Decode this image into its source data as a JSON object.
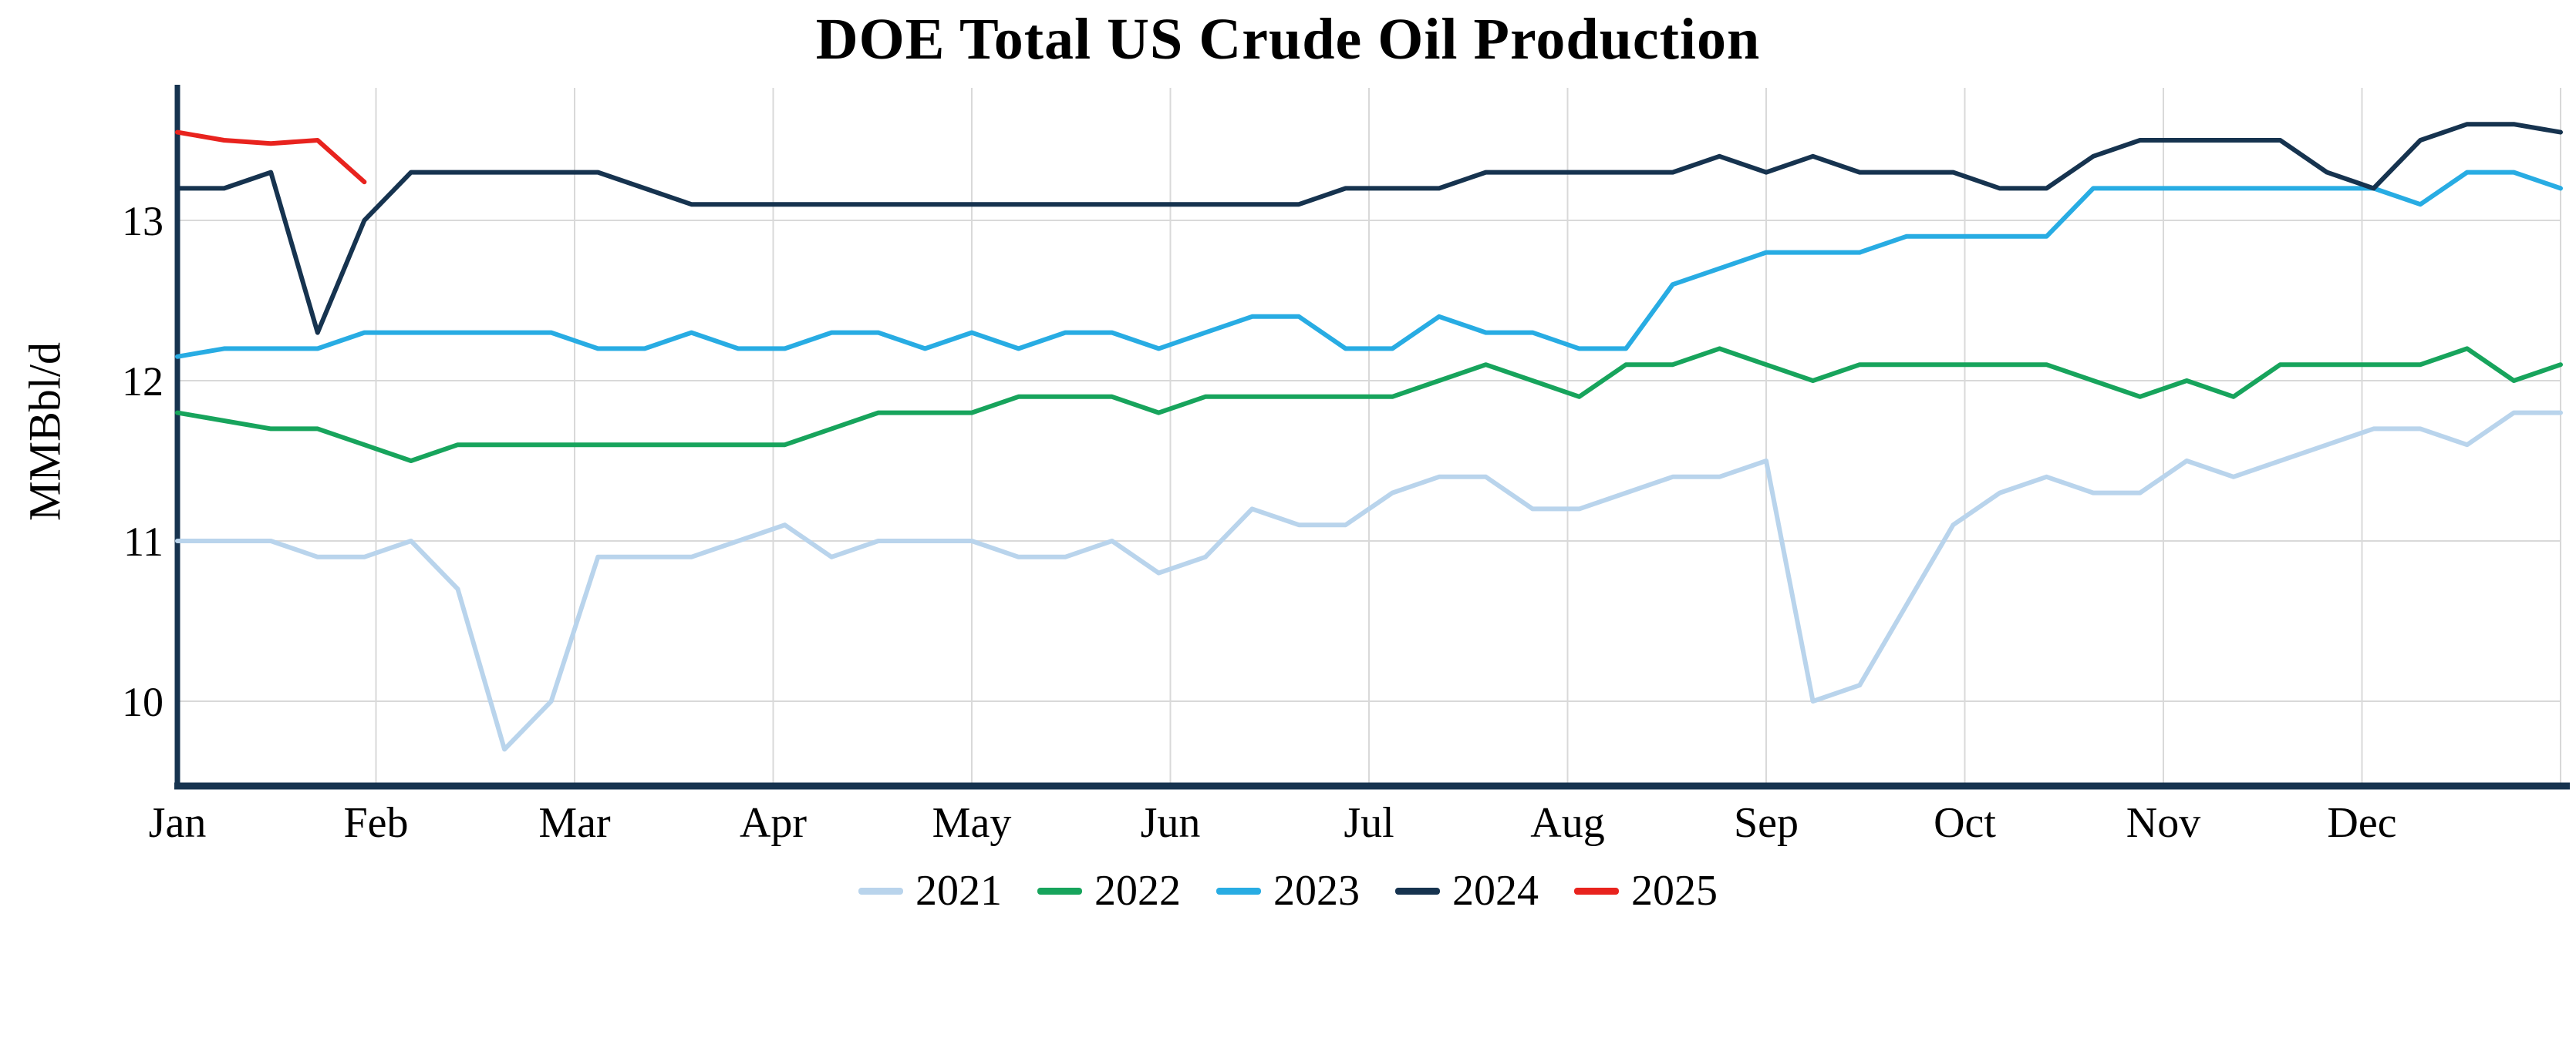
{
  "chart_data": {
    "type": "line",
    "title": "DOE Total US Crude Oil Production",
    "ylabel": "MMBbl/d",
    "x_unit": "week of year (weekly observations)",
    "x_tick_labels": [
      "Jan",
      "Feb",
      "Mar",
      "Apr",
      "May",
      "Jun",
      "Jul",
      "Aug",
      "Sep",
      "Oct",
      "Nov",
      "Dec"
    ],
    "y_ticks": [
      10,
      11,
      12,
      13
    ],
    "ylim": [
      9.45,
      13.85
    ],
    "grid": true,
    "grid_color": "#d9d9d9",
    "axis_color": "#16334f",
    "legend_position": "bottom",
    "series": [
      {
        "name": "2021",
        "color": "#b9d4ec",
        "values": [
          11.0,
          11.0,
          11.0,
          10.9,
          10.9,
          11.0,
          10.7,
          9.7,
          10.0,
          10.9,
          10.9,
          10.9,
          11.0,
          11.1,
          10.9,
          11.0,
          11.0,
          11.0,
          10.9,
          10.9,
          11.0,
          10.8,
          10.9,
          11.2,
          11.1,
          11.1,
          11.3,
          11.4,
          11.4,
          11.2,
          11.2,
          11.3,
          11.4,
          11.4,
          11.5,
          10.0,
          10.1,
          10.6,
          11.1,
          11.3,
          11.4,
          11.3,
          11.3,
          11.5,
          11.4,
          11.5,
          11.6,
          11.7,
          11.7,
          11.6,
          11.8,
          11.8
        ]
      },
      {
        "name": "2022",
        "color": "#17a45c",
        "values": [
          11.8,
          11.75,
          11.7,
          11.7,
          11.6,
          11.5,
          11.6,
          11.6,
          11.6,
          11.6,
          11.6,
          11.6,
          11.6,
          11.6,
          11.7,
          11.8,
          11.8,
          11.8,
          11.9,
          11.9,
          11.9,
          11.8,
          11.9,
          11.9,
          11.9,
          11.9,
          11.9,
          12.0,
          12.1,
          12.0,
          11.9,
          12.1,
          12.1,
          12.2,
          12.1,
          12.0,
          12.1,
          12.1,
          12.1,
          12.1,
          12.1,
          12.0,
          11.9,
          12.0,
          11.9,
          12.1,
          12.1,
          12.1,
          12.1,
          12.2,
          12.0,
          12.1
        ]
      },
      {
        "name": "2023",
        "color": "#28ace3",
        "values": [
          12.15,
          12.2,
          12.2,
          12.2,
          12.3,
          12.3,
          12.3,
          12.3,
          12.3,
          12.2,
          12.2,
          12.3,
          12.2,
          12.2,
          12.3,
          12.3,
          12.2,
          12.3,
          12.2,
          12.3,
          12.3,
          12.2,
          12.3,
          12.4,
          12.4,
          12.2,
          12.2,
          12.4,
          12.3,
          12.3,
          12.2,
          12.2,
          12.6,
          12.7,
          12.8,
          12.8,
          12.8,
          12.9,
          12.9,
          12.9,
          12.9,
          13.2,
          13.2,
          13.2,
          13.2,
          13.2,
          13.2,
          13.2,
          13.1,
          13.3,
          13.3,
          13.2
        ]
      },
      {
        "name": "2024",
        "color": "#16334f",
        "values": [
          13.2,
          13.2,
          13.3,
          12.3,
          13.0,
          13.3,
          13.3,
          13.3,
          13.3,
          13.3,
          13.2,
          13.1,
          13.1,
          13.1,
          13.1,
          13.1,
          13.1,
          13.1,
          13.1,
          13.1,
          13.1,
          13.1,
          13.1,
          13.1,
          13.1,
          13.2,
          13.2,
          13.2,
          13.3,
          13.3,
          13.3,
          13.3,
          13.3,
          13.4,
          13.3,
          13.4,
          13.3,
          13.3,
          13.3,
          13.2,
          13.2,
          13.4,
          13.5,
          13.5,
          13.5,
          13.5,
          13.3,
          13.2,
          13.5,
          13.6,
          13.6,
          13.55
        ]
      },
      {
        "name": "2025",
        "color": "#e8231e",
        "values": [
          13.55,
          13.5,
          13.48,
          13.5,
          13.24
        ]
      }
    ]
  }
}
